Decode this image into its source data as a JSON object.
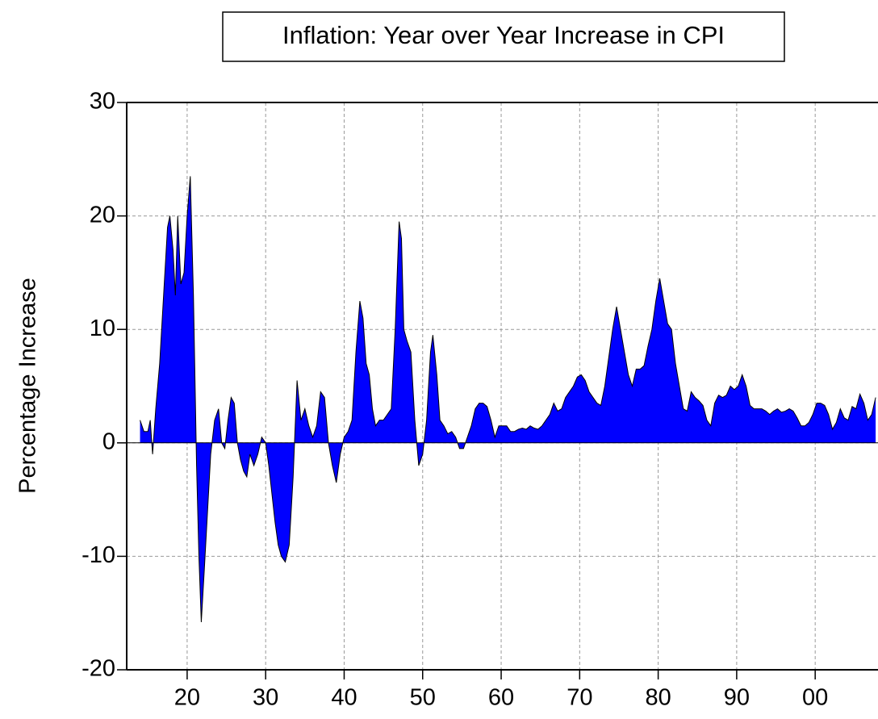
{
  "chart_data": {
    "type": "area",
    "title": "Inflation: Year over Year Increase in CPI",
    "ylabel": "Percentage Increase",
    "color": "#0000ff",
    "grid": true,
    "xlim": [
      1912.3,
      2008
    ],
    "ylim": [
      -20,
      30
    ],
    "yticks": [
      -20,
      -10,
      0,
      10,
      20,
      30
    ],
    "xticks": [
      {
        "value": 1920,
        "label": "20"
      },
      {
        "value": 1930,
        "label": "30"
      },
      {
        "value": 1940,
        "label": "40"
      },
      {
        "value": 1950,
        "label": "50"
      },
      {
        "value": 1960,
        "label": "60"
      },
      {
        "value": 1970,
        "label": "70"
      },
      {
        "value": 1980,
        "label": "80"
      },
      {
        "value": 1990,
        "label": "90"
      },
      {
        "value": 2000,
        "label": "00"
      }
    ],
    "x": [
      1914.0,
      1914.5,
      1915.0,
      1915.3,
      1915.6,
      1916.0,
      1916.5,
      1917.0,
      1917.5,
      1917.8,
      1918.2,
      1918.5,
      1918.8,
      1919.2,
      1919.6,
      1920.0,
      1920.4,
      1920.8,
      1921.2,
      1921.5,
      1921.8,
      1922.2,
      1922.6,
      1923.0,
      1923.5,
      1924.0,
      1924.4,
      1924.8,
      1925.2,
      1925.6,
      1926.0,
      1926.4,
      1926.8,
      1927.2,
      1927.6,
      1928.0,
      1928.5,
      1929.0,
      1929.5,
      1930.0,
      1930.4,
      1930.8,
      1931.2,
      1931.6,
      1932.0,
      1932.5,
      1933.0,
      1933.5,
      1934.0,
      1934.5,
      1935.0,
      1935.5,
      1936.0,
      1936.5,
      1937.0,
      1937.5,
      1938.0,
      1938.5,
      1939.0,
      1939.5,
      1940.0,
      1940.5,
      1941.0,
      1941.5,
      1942.0,
      1942.4,
      1942.8,
      1943.2,
      1943.6,
      1944.0,
      1944.5,
      1945.0,
      1945.5,
      1946.0,
      1946.5,
      1947.0,
      1947.3,
      1947.6,
      1948.0,
      1948.5,
      1949.0,
      1949.5,
      1950.0,
      1950.5,
      1951.0,
      1951.3,
      1951.8,
      1952.2,
      1952.7,
      1953.2,
      1953.7,
      1954.2,
      1954.7,
      1955.2,
      1955.7,
      1956.2,
      1956.7,
      1957.2,
      1957.7,
      1958.2,
      1958.7,
      1959.2,
      1959.7,
      1960.2,
      1960.7,
      1961.2,
      1961.7,
      1962.2,
      1962.7,
      1963.2,
      1963.7,
      1964.2,
      1964.7,
      1965.2,
      1965.7,
      1966.2,
      1966.7,
      1967.2,
      1967.7,
      1968.2,
      1968.7,
      1969.2,
      1969.7,
      1970.2,
      1970.7,
      1971.2,
      1971.7,
      1972.2,
      1972.7,
      1973.2,
      1973.7,
      1974.2,
      1974.7,
      1975.2,
      1975.7,
      1976.2,
      1976.7,
      1977.2,
      1977.7,
      1978.2,
      1978.7,
      1979.2,
      1979.7,
      1980.2,
      1980.7,
      1981.2,
      1981.7,
      1982.2,
      1982.7,
      1983.2,
      1983.7,
      1984.2,
      1984.7,
      1985.2,
      1985.7,
      1986.2,
      1986.7,
      1987.2,
      1987.7,
      1988.2,
      1988.7,
      1989.2,
      1989.7,
      1990.2,
      1990.7,
      1991.2,
      1991.7,
      1992.2,
      1992.7,
      1993.2,
      1993.7,
      1994.2,
      1994.7,
      1995.2,
      1995.7,
      1996.2,
      1996.7,
      1997.2,
      1997.7,
      1998.2,
      1998.7,
      1999.2,
      1999.7,
      2000.2,
      2000.7,
      2001.2,
      2001.7,
      2002.2,
      2002.7,
      2003.2,
      2003.7,
      2004.2,
      2004.7,
      2005.2,
      2005.7,
      2006.2,
      2006.7,
      2007.2,
      2007.7
    ],
    "values": [
      2,
      1,
      1,
      2,
      -1,
      3,
      7,
      13,
      19,
      20,
      17,
      13,
      20,
      14,
      15,
      20,
      23.5,
      13,
      -2,
      -10,
      -15.8,
      -11,
      -6,
      -1,
      2,
      3,
      0,
      -0.5,
      2,
      4,
      3.5,
      0,
      -1.5,
      -2.5,
      -3,
      -1,
      -2,
      -1,
      0.5,
      0,
      -2,
      -4.5,
      -7,
      -9,
      -10,
      -10.5,
      -9,
      -3,
      5.5,
      2,
      3,
      1.5,
      0.5,
      1.5,
      4.5,
      4,
      0,
      -2,
      -3.5,
      -1,
      0.5,
      1,
      2,
      8,
      12.5,
      11,
      7,
      6,
      3,
      1.5,
      2,
      2,
      2.5,
      3,
      10,
      19.5,
      18,
      10,
      9,
      8,
      2,
      -2,
      -1,
      2,
      8,
      9.5,
      6,
      2,
      1.5,
      0.8,
      1,
      0.5,
      -0.5,
      -0.5,
      0.5,
      1.5,
      3,
      3.5,
      3.5,
      3.2,
      2,
      0.5,
      1.5,
      1.5,
      1.5,
      1,
      1,
      1.2,
      1.3,
      1.2,
      1.5,
      1.3,
      1.2,
      1.5,
      2,
      2.5,
      3.5,
      2.8,
      3,
      4,
      4.5,
      5,
      5.8,
      6,
      5.5,
      4.5,
      4,
      3.5,
      3.3,
      5,
      7.5,
      10,
      12,
      10,
      8,
      6,
      5,
      6.5,
      6.5,
      6.8,
      8.5,
      10,
      12.5,
      14.5,
      12.5,
      10.5,
      10,
      7,
      5,
      3,
      2.8,
      4.5,
      4,
      3.7,
      3.3,
      2,
      1.5,
      3.5,
      4.2,
      4,
      4.2,
      5,
      4.7,
      5,
      6,
      5,
      3.3,
      3,
      3,
      3,
      2.8,
      2.5,
      2.8,
      3,
      2.7,
      2.8,
      3,
      2.8,
      2.2,
      1.5,
      1.5,
      1.8,
      2.5,
      3.5,
      3.5,
      3.3,
      2.5,
      1.2,
      1.8,
      3,
      2.2,
      2,
      3.2,
      3,
      4.3,
      3.5,
      2,
      2.5,
      4
    ]
  }
}
